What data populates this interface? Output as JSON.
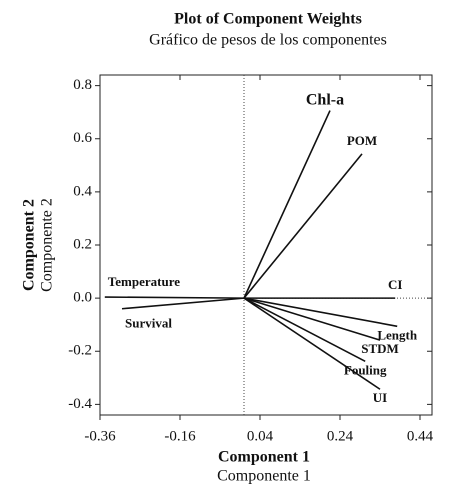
{
  "chart_data": {
    "type": "biplot",
    "title": "Plot of Component Weights",
    "subtitle": "Gráfico de pesos de los componentes",
    "x_label": "Component 1",
    "x_label_alt": "Componente 1",
    "y_label": "Component 2",
    "y_label_alt": "Componente 2",
    "xlim": [
      -0.36,
      0.47
    ],
    "ylim": [
      -0.44,
      0.84
    ],
    "xticks": [
      -0.36,
      -0.16,
      0.04,
      0.24,
      0.44
    ],
    "yticks": [
      {
        "value": 0.8,
        "label": "0.8"
      },
      {
        "value": 0.6,
        "label": "0.6"
      },
      {
        "value": 0.4,
        "label": "0.4"
      },
      {
        "value": 0.2,
        "label": "0.2"
      },
      {
        "value": 0,
        "label": "0.0"
      },
      {
        "value": -0.2,
        "label": "-0.2"
      },
      {
        "value": -0.4,
        "label": "-0.4"
      }
    ],
    "color": "#111111",
    "points": [
      {
        "name": "Chl-a",
        "x": 0.215,
        "y": 0.706
      },
      {
        "name": "POM",
        "x": 0.295,
        "y": 0.543
      },
      {
        "name": "CI",
        "x": 0.378,
        "y": 0.0
      },
      {
        "name": "Length",
        "x": 0.383,
        "y": -0.106
      },
      {
        "name": "STDM",
        "x": 0.34,
        "y": -0.158
      },
      {
        "name": "Fouling",
        "x": 0.303,
        "y": -0.238
      },
      {
        "name": "UI",
        "x": 0.34,
        "y": -0.343
      },
      {
        "name": "Temperature",
        "x": -0.348,
        "y": 0.004
      },
      {
        "name": "Survival",
        "x": -0.305,
        "y": -0.04
      }
    ]
  }
}
